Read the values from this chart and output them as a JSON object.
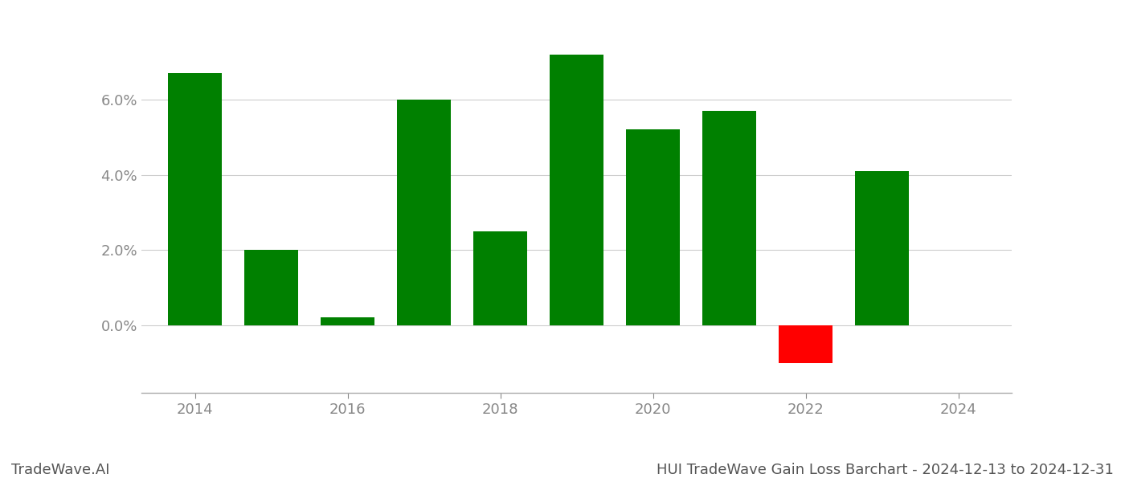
{
  "years": [
    2014,
    2015,
    2016,
    2017,
    2018,
    2019,
    2020,
    2021,
    2022,
    2023
  ],
  "values": [
    6.7,
    2.0,
    0.2,
    6.0,
    2.5,
    7.2,
    5.2,
    5.7,
    -1.0,
    4.1
  ],
  "bar_colors": [
    "#008000",
    "#008000",
    "#008000",
    "#008000",
    "#008000",
    "#008000",
    "#008000",
    "#008000",
    "#ff0000",
    "#008000"
  ],
  "title": "HUI TradeWave Gain Loss Barchart - 2024-12-13 to 2024-12-31",
  "watermark": "TradeWave.AI",
  "ylim": [
    -1.8,
    8.2
  ],
  "ytick_values": [
    0.0,
    2.0,
    4.0,
    6.0
  ],
  "xtick_years": [
    2014,
    2016,
    2018,
    2020,
    2022,
    2024
  ],
  "xmin": 2013.3,
  "xmax": 2024.7,
  "grid_color": "#cccccc",
  "background_color": "#ffffff",
  "bar_width": 0.7,
  "title_fontsize": 13,
  "watermark_fontsize": 13,
  "tick_fontsize": 13,
  "tick_color": "#888888"
}
